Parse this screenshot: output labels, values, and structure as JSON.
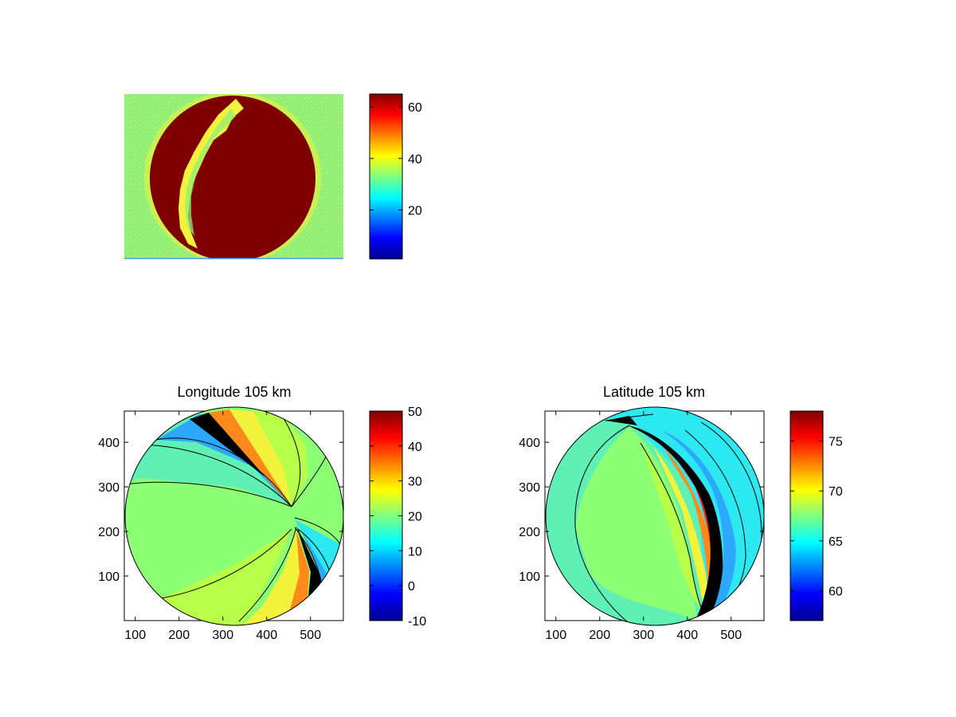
{
  "chart_data": [
    {
      "type": "heatmap",
      "subtype": "image",
      "title": "",
      "xlabel": "",
      "ylabel": "",
      "description_of_content": "false-color all-sky camera image, jet colormap, large saturated disc with bright arc",
      "stamp_text": "",
      "colorbar": {
        "ticks": [
          20,
          40,
          60
        ],
        "clim": [
          1,
          65
        ],
        "colormap": "jet"
      },
      "grid": false
    },
    {
      "type": "heatmap",
      "subtype": "filled-contour",
      "title": "Longitude 105 km",
      "xlabel": "",
      "ylabel": "",
      "xticks": [
        100,
        200,
        300,
        400,
        500
      ],
      "yticks": [
        100,
        200,
        300,
        400
      ],
      "xlim": [
        75,
        575
      ],
      "ylim": [
        0,
        470
      ],
      "colorbar": {
        "ticks": [
          -10,
          0,
          10,
          20,
          30,
          40,
          50
        ],
        "clim": [
          -10,
          50
        ],
        "colormap": "jet"
      },
      "grid": false
    },
    {
      "type": "heatmap",
      "subtype": "filled-contour",
      "title": "Latitude 105 km",
      "xlabel": "",
      "ylabel": "",
      "xticks": [
        100,
        200,
        300,
        400,
        500
      ],
      "yticks": [
        100,
        200,
        300,
        400
      ],
      "xlim": [
        75,
        575
      ],
      "ylim": [
        0,
        470
      ],
      "colorbar": {
        "ticks": [
          60,
          65,
          70,
          75
        ],
        "clim": [
          57,
          78
        ],
        "colormap": "jet"
      },
      "grid": false
    }
  ],
  "colors": {
    "bg_green": "#8ef07a",
    "dark_red": "#800000",
    "yellow": "#f2f23a",
    "contour_green": "#8cff74",
    "contour_cyan_green": "#5ef0b4",
    "contour_lime": "#b8ff4a",
    "contour_cyan": "#2ce8f0",
    "contour_black": "#000000"
  }
}
